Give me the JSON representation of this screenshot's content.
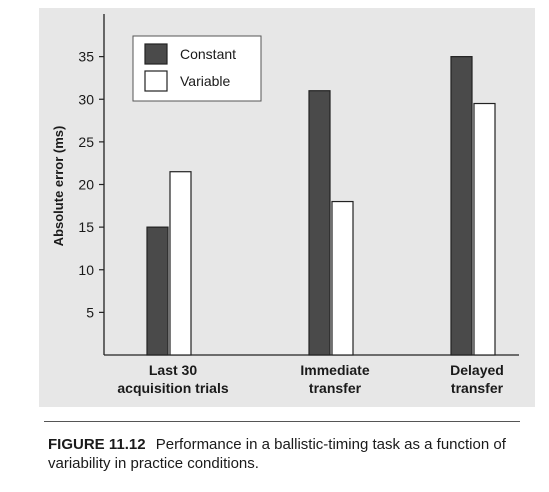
{
  "chart_data": {
    "type": "bar",
    "categories": [
      [
        "Last 30",
        "acquisition trials"
      ],
      [
        "Immediate",
        "transfer"
      ],
      [
        "Delayed",
        "transfer"
      ]
    ],
    "series": [
      {
        "name": "Constant",
        "values": [
          15,
          31,
          35
        ],
        "color": "#4a4a4a"
      },
      {
        "name": "Variable",
        "values": [
          21.5,
          18,
          29.5
        ],
        "color": "#ffffff"
      }
    ],
    "ylabel": "Absolute error (ms)",
    "ylim": [
      0,
      40
    ],
    "yticks": [
      5,
      10,
      15,
      20,
      25,
      30,
      35
    ],
    "grid": false,
    "legend_position": "top-left"
  },
  "caption": {
    "label": "FIGURE 11.12",
    "text": "Performance in a ballistic-timing task as a function of variability in practice conditions."
  }
}
